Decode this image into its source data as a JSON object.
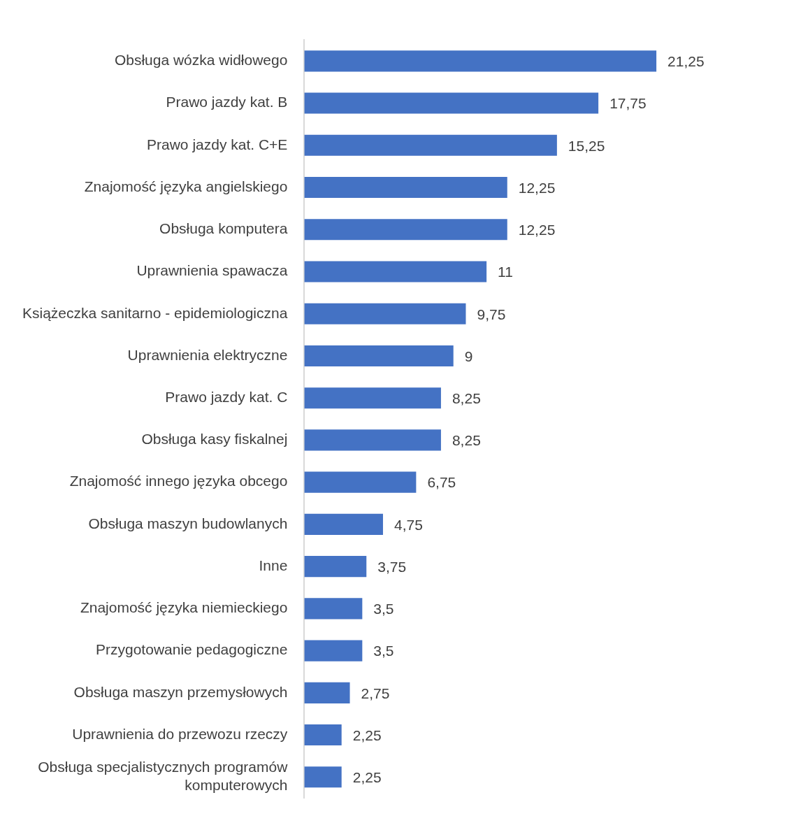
{
  "chart_data": {
    "type": "bar",
    "orientation": "horizontal",
    "categories": [
      "Obsługa wózka widłowego",
      "Prawo jazdy kat. B",
      "Prawo jazdy kat. C+E",
      "Znajomość języka angielskiego",
      "Obsługa komputera",
      "Uprawnienia spawacza",
      "Książeczka sanitarno - epidemiologiczna",
      "Uprawnienia elektryczne",
      "Prawo jazdy kat. C",
      "Obsługa kasy fiskalnej",
      "Znajomość innego języka obcego",
      "Obsługa maszyn budowlanych",
      "Inne",
      "Znajomość języka niemieckiego",
      "Przygotowanie pedagogiczne",
      "Obsługa maszyn przemysłowych",
      "Uprawnienia do przewozu rzeczy",
      "Obsługa specjalistycznych programów komputerowych"
    ],
    "values": [
      21.25,
      17.75,
      15.25,
      12.25,
      12.25,
      11,
      9.75,
      9,
      8.25,
      8.25,
      6.75,
      4.75,
      3.75,
      3.5,
      3.5,
      2.75,
      2.25,
      2.25
    ],
    "value_labels": [
      "21,25",
      "17,75",
      "15,25",
      "12,25",
      "12,25",
      "11",
      "9,75",
      "9",
      "8,25",
      "8,25",
      "6,75",
      "4,75",
      "3,75",
      "3,5",
      "3,5",
      "2,75",
      "2,25",
      "2,25"
    ],
    "color": "#4472c4",
    "tick_labels": "y"
  }
}
